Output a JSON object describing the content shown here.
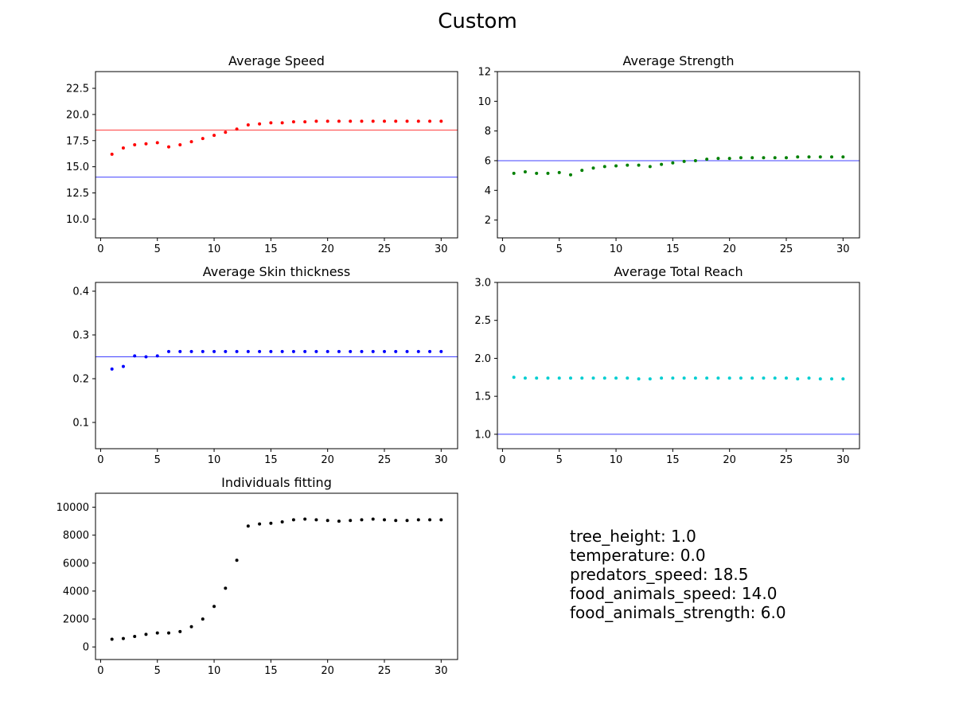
{
  "figure": {
    "title": "Custom"
  },
  "parameters": [
    "tree_height: 1.0",
    "temperature: 0.0",
    "predators_speed: 18.5",
    "food_animals_speed: 14.0",
    "food_animals_strength: 6.0"
  ],
  "chart_data": [
    {
      "type": "scatter",
      "title": "Average Speed",
      "xlabel": "",
      "ylabel": "",
      "xlim": [
        -0.45,
        31.45
      ],
      "ylim": [
        8.2,
        24.1
      ],
      "xticks": [
        0,
        5,
        10,
        15,
        20,
        25,
        30
      ],
      "yticks": [
        10.0,
        12.5,
        15.0,
        17.5,
        20.0,
        22.5
      ],
      "ytick_labels": [
        "10.0",
        "12.5",
        "15.0",
        "17.5",
        "20.0",
        "22.5"
      ],
      "grid": false,
      "color": "#ff0000",
      "x": [
        1,
        2,
        3,
        4,
        5,
        6,
        7,
        8,
        9,
        10,
        11,
        12,
        13,
        14,
        15,
        16,
        17,
        18,
        19,
        20,
        21,
        22,
        23,
        24,
        25,
        26,
        27,
        28,
        29,
        30
      ],
      "y": [
        16.2,
        16.8,
        17.1,
        17.2,
        17.3,
        16.9,
        17.1,
        17.4,
        17.7,
        18.0,
        18.3,
        18.6,
        19.0,
        19.1,
        19.2,
        19.2,
        19.3,
        19.3,
        19.35,
        19.35,
        19.35,
        19.35,
        19.35,
        19.35,
        19.35,
        19.35,
        19.35,
        19.35,
        19.35,
        19.35
      ],
      "hlines": [
        {
          "y": 18.5,
          "color": "#ff0000"
        },
        {
          "y": 14.0,
          "color": "#0000ff"
        }
      ]
    },
    {
      "type": "scatter",
      "title": "Average Strength",
      "xlabel": "",
      "ylabel": "",
      "xlim": [
        -0.45,
        31.45
      ],
      "ylim": [
        0.8,
        12.0
      ],
      "xticks": [
        0,
        5,
        10,
        15,
        20,
        25,
        30
      ],
      "yticks": [
        2,
        4,
        6,
        8,
        10,
        12
      ],
      "ytick_labels": [
        "2",
        "4",
        "6",
        "8",
        "10",
        "12"
      ],
      "grid": false,
      "color": "#008000",
      "x": [
        1,
        2,
        3,
        4,
        5,
        6,
        7,
        8,
        9,
        10,
        11,
        12,
        13,
        14,
        15,
        16,
        17,
        18,
        19,
        20,
        21,
        22,
        23,
        24,
        25,
        26,
        27,
        28,
        29,
        30
      ],
      "y": [
        5.15,
        5.25,
        5.15,
        5.15,
        5.2,
        5.05,
        5.35,
        5.5,
        5.6,
        5.65,
        5.7,
        5.7,
        5.6,
        5.75,
        5.85,
        5.95,
        6.0,
        6.1,
        6.15,
        6.15,
        6.2,
        6.2,
        6.2,
        6.2,
        6.2,
        6.25,
        6.25,
        6.25,
        6.25,
        6.25
      ],
      "hlines": [
        {
          "y": 6.0,
          "color": "#0000ff"
        }
      ]
    },
    {
      "type": "scatter",
      "title": "Average Skin thickness",
      "xlabel": "",
      "ylabel": "",
      "xlim": [
        -0.45,
        31.45
      ],
      "ylim": [
        0.04,
        0.42
      ],
      "xticks": [
        0,
        5,
        10,
        15,
        20,
        25,
        30
      ],
      "yticks": [
        0.1,
        0.2,
        0.3,
        0.4
      ],
      "ytick_labels": [
        "0.1",
        "0.2",
        "0.3",
        "0.4"
      ],
      "grid": false,
      "color": "#0000ff",
      "x": [
        1,
        2,
        3,
        4,
        5,
        6,
        7,
        8,
        9,
        10,
        11,
        12,
        13,
        14,
        15,
        16,
        17,
        18,
        19,
        20,
        21,
        22,
        23,
        24,
        25,
        26,
        27,
        28,
        29,
        30
      ],
      "y": [
        0.222,
        0.228,
        0.252,
        0.25,
        0.252,
        0.262,
        0.262,
        0.262,
        0.262,
        0.262,
        0.262,
        0.262,
        0.262,
        0.262,
        0.262,
        0.262,
        0.262,
        0.262,
        0.262,
        0.262,
        0.262,
        0.262,
        0.262,
        0.262,
        0.262,
        0.262,
        0.262,
        0.262,
        0.262,
        0.262
      ],
      "hlines": [
        {
          "y": 0.25,
          "color": "#0000ff"
        }
      ]
    },
    {
      "type": "scatter",
      "title": "Average Total Reach",
      "xlabel": "",
      "ylabel": "",
      "xlim": [
        -0.45,
        31.45
      ],
      "ylim": [
        0.81,
        3.0
      ],
      "xticks": [
        0,
        5,
        10,
        15,
        20,
        25,
        30
      ],
      "yticks": [
        1.0,
        1.5,
        2.0,
        2.5,
        3.0
      ],
      "ytick_labels": [
        "1.0",
        "1.5",
        "2.0",
        "2.5",
        "3.0"
      ],
      "grid": false,
      "color": "#00ced1",
      "x": [
        1,
        2,
        3,
        4,
        5,
        6,
        7,
        8,
        9,
        10,
        11,
        12,
        13,
        14,
        15,
        16,
        17,
        18,
        19,
        20,
        21,
        22,
        23,
        24,
        25,
        26,
        27,
        28,
        29,
        30
      ],
      "y": [
        1.75,
        1.74,
        1.74,
        1.74,
        1.74,
        1.74,
        1.74,
        1.74,
        1.74,
        1.74,
        1.74,
        1.73,
        1.73,
        1.74,
        1.74,
        1.74,
        1.74,
        1.74,
        1.74,
        1.74,
        1.74,
        1.74,
        1.74,
        1.74,
        1.74,
        1.73,
        1.74,
        1.73,
        1.73,
        1.73
      ],
      "hlines": [
        {
          "y": 1.0,
          "color": "#0000ff"
        }
      ]
    },
    {
      "type": "scatter",
      "title": "Individuals fitting",
      "xlabel": "",
      "ylabel": "",
      "xlim": [
        -0.45,
        31.45
      ],
      "ylim": [
        -900,
        11000
      ],
      "xticks": [
        0,
        5,
        10,
        15,
        20,
        25,
        30
      ],
      "yticks": [
        0,
        2000,
        4000,
        6000,
        8000,
        10000
      ],
      "ytick_labels": [
        "0",
        "2000",
        "4000",
        "6000",
        "8000",
        "10000"
      ],
      "grid": false,
      "color": "#000000",
      "x": [
        1,
        2,
        3,
        4,
        5,
        6,
        7,
        8,
        9,
        10,
        11,
        12,
        13,
        14,
        15,
        16,
        17,
        18,
        19,
        20,
        21,
        22,
        23,
        24,
        25,
        26,
        27,
        28,
        29,
        30
      ],
      "y": [
        550,
        600,
        750,
        900,
        1000,
        1000,
        1100,
        1450,
        2000,
        2900,
        4200,
        6200,
        8650,
        8800,
        8850,
        8950,
        9100,
        9150,
        9100,
        9050,
        9000,
        9050,
        9100,
        9150,
        9100,
        9050,
        9050,
        9100,
        9100,
        9100
      ],
      "hlines": []
    }
  ]
}
